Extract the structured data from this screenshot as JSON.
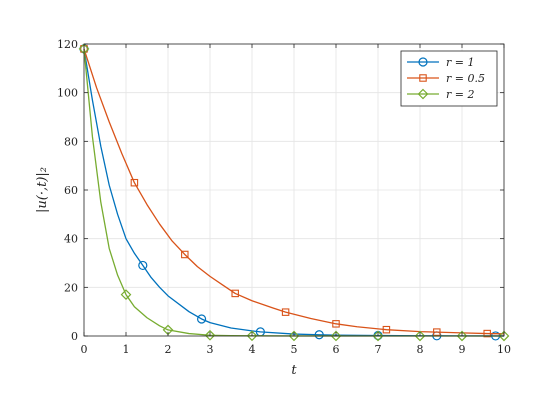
{
  "chart_data": {
    "type": "line",
    "xlabel": "t",
    "ylabel": "|u(·,t)|₂",
    "xlim": [
      0,
      10
    ],
    "ylim": [
      0,
      120
    ],
    "xticks": [
      0,
      1,
      2,
      3,
      4,
      5,
      6,
      7,
      8,
      9,
      10
    ],
    "yticks": [
      0,
      20,
      40,
      60,
      80,
      100,
      120
    ],
    "grid": true,
    "legend_position": "top-right",
    "series": [
      {
        "name": "r = 1",
        "color": "#0072BD",
        "marker": "circle",
        "x": [
          0,
          0.2,
          0.4,
          0.6,
          0.8,
          1.0,
          1.2,
          1.4,
          1.6,
          1.8,
          2.0,
          2.5,
          2.8,
          3.0,
          3.5,
          4.0,
          4.2,
          5.0,
          5.6,
          6.0,
          7.0,
          8.0,
          8.4,
          9.0,
          9.8,
          10.0
        ],
        "y": [
          118,
          97,
          78,
          62,
          50,
          40,
          34,
          29,
          24,
          20,
          16.5,
          10,
          7,
          5.5,
          3.3,
          2.1,
          1.7,
          0.8,
          0.5,
          0.35,
          0.2,
          0.1,
          0.08,
          0.05,
          0.03,
          0.03
        ],
        "marker_x": [
          0,
          1.4,
          2.8,
          4.2,
          5.6,
          7.0,
          8.4,
          9.8
        ]
      },
      {
        "name": "r = 0.5",
        "color": "#D95319",
        "marker": "square",
        "x": [
          0,
          0.3,
          0.6,
          0.9,
          1.2,
          1.5,
          1.8,
          2.1,
          2.4,
          2.7,
          3.0,
          3.3,
          3.6,
          4.0,
          4.5,
          4.8,
          5.4,
          6.0,
          6.5,
          7.2,
          8.0,
          8.4,
          9.0,
          9.6,
          10.0
        ],
        "y": [
          118,
          102,
          88,
          75,
          63,
          54,
          46,
          39,
          33.5,
          28.5,
          24.5,
          21,
          17.5,
          14.5,
          11.5,
          9.8,
          7.2,
          5.0,
          3.8,
          2.6,
          1.8,
          1.6,
          1.3,
          1.0,
          0.9
        ],
        "marker_x": [
          0,
          1.2,
          2.4,
          3.6,
          4.8,
          6.0,
          7.2,
          8.4,
          9.6
        ]
      },
      {
        "name": "r = 2",
        "color": "#77AC30",
        "marker": "diamond",
        "x": [
          0,
          0.2,
          0.4,
          0.6,
          0.8,
          1.0,
          1.2,
          1.5,
          1.8,
          2.0,
          2.5,
          3.0,
          3.5,
          4.0,
          5.0,
          6.0,
          7.0,
          8.0,
          9.0,
          10.0
        ],
        "y": [
          118,
          82,
          55,
          36,
          25,
          17,
          12,
          7.5,
          4.2,
          2.5,
          1.0,
          0.3,
          0.15,
          0.08,
          0.03,
          0.02,
          0.01,
          0.01,
          0.01,
          0.01
        ],
        "marker_x": [
          0,
          1.0,
          2.0,
          3.0,
          4.0,
          5.0,
          6.0,
          7.0,
          8.0,
          9.0,
          10.0
        ]
      }
    ]
  }
}
